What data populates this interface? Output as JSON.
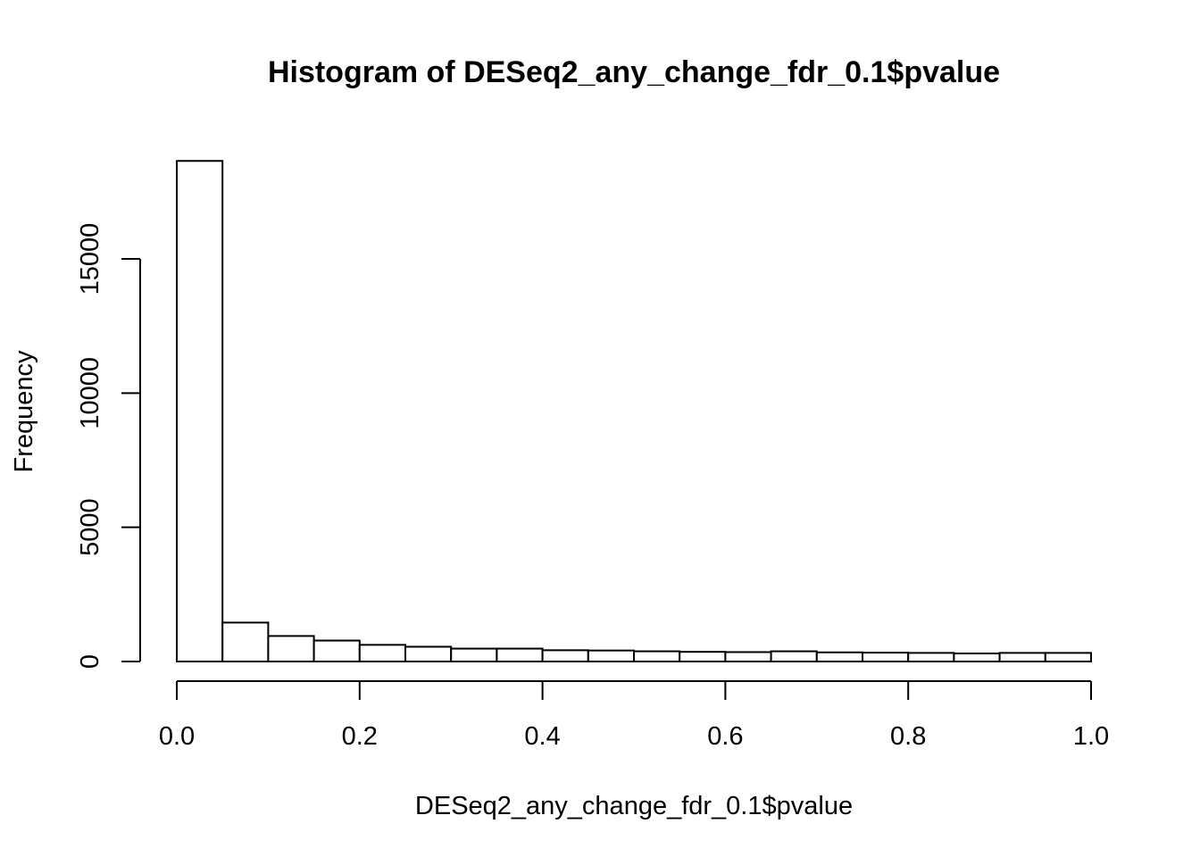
{
  "chart_data": {
    "type": "bar",
    "title": "Histogram of DESeq2_any_change_fdr_0.1$pvalue",
    "xlabel": "DESeq2_any_change_fdr_0.1$pvalue",
    "ylabel": "Frequency",
    "xlim": [
      0,
      1
    ],
    "ylim": [
      0,
      18650
    ],
    "x_ticks": [
      0.0,
      0.2,
      0.4,
      0.6,
      0.8,
      1.0
    ],
    "x_tick_labels": [
      "0.0",
      "0.2",
      "0.4",
      "0.6",
      "0.8",
      "1.0"
    ],
    "y_ticks": [
      0,
      5000,
      10000,
      15000
    ],
    "y_tick_labels": [
      "0",
      "5000",
      "10000",
      "15000"
    ],
    "bin_width": 0.05,
    "bin_starts": [
      0.0,
      0.05,
      0.1,
      0.15,
      0.2,
      0.25,
      0.3,
      0.35,
      0.4,
      0.45,
      0.5,
      0.55,
      0.6,
      0.65,
      0.7,
      0.75,
      0.8,
      0.85,
      0.9,
      0.95
    ],
    "values": [
      18650,
      1450,
      950,
      780,
      620,
      550,
      480,
      480,
      420,
      410,
      380,
      360,
      350,
      380,
      340,
      330,
      320,
      300,
      320,
      320
    ],
    "grid": false,
    "bar_fill": "#ffffff",
    "bar_stroke": "#000000"
  }
}
